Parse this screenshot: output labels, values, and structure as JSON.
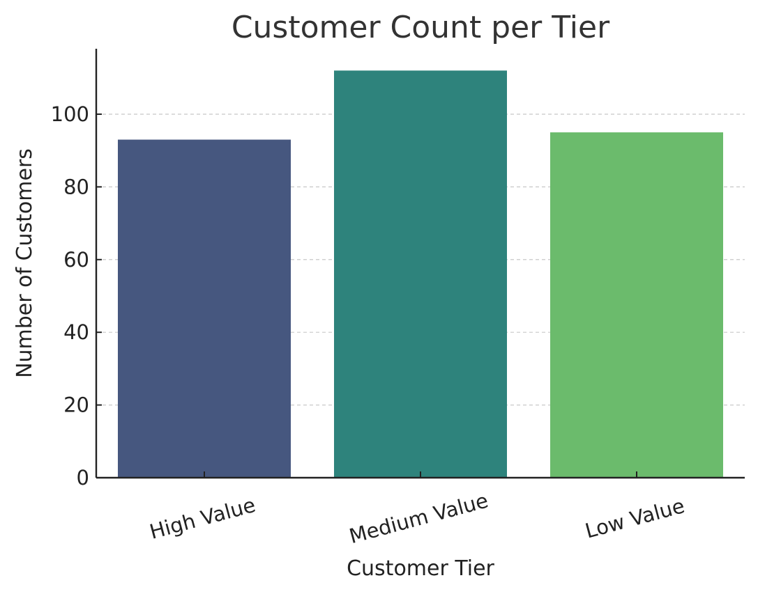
{
  "chart_data": {
    "type": "bar",
    "title": "Customer Count per Tier",
    "xlabel": "Customer Tier",
    "ylabel": "Number of Customers",
    "categories": [
      "High Value",
      "Medium Value",
      "Low Value"
    ],
    "values": [
      93,
      112,
      95
    ],
    "colors": [
      "#46577f",
      "#2e837c",
      "#6bbb6c"
    ],
    "ylim": [
      0,
      118
    ],
    "yticks": [
      0,
      20,
      40,
      60,
      80,
      100
    ],
    "grid": "y-dashed",
    "legend": "none"
  }
}
